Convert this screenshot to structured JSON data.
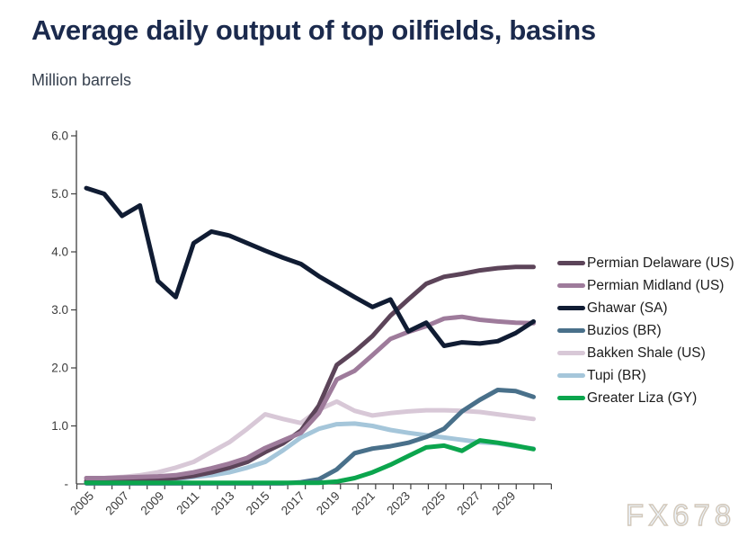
{
  "chart_data": {
    "type": "line",
    "title": "Average daily output of top oilfields, basins",
    "subtitle": "Million barrels",
    "watermark": "FX678",
    "xlabel": "",
    "ylabel": "Million barrels",
    "ylim": [
      0,
      6
    ],
    "grid": false,
    "legend_position": "right",
    "x": [
      2005,
      2006,
      2007,
      2008,
      2009,
      2010,
      2011,
      2012,
      2013,
      2014,
      2015,
      2016,
      2017,
      2018,
      2019,
      2020,
      2021,
      2022,
      2023,
      2024,
      2025,
      2026,
      2027,
      2028,
      2029,
      2030
    ],
    "x_tick_labels": [
      "2005",
      "2007",
      "2009",
      "2011",
      "2013",
      "2015",
      "2017",
      "2019",
      "2021",
      "2023",
      "2025",
      "2027",
      "2029"
    ],
    "y_ticks": [
      {
        "label": "-",
        "value": 0
      },
      {
        "label": "1.0",
        "value": 1
      },
      {
        "label": "2.0",
        "value": 2
      },
      {
        "label": "3.0",
        "value": 3
      },
      {
        "label": "4.0",
        "value": 4
      },
      {
        "label": "5.0",
        "value": 5
      },
      {
        "label": "6.0",
        "value": 6
      }
    ],
    "series": [
      {
        "name": "Permian Delaware (US)",
        "color": "#5c4459",
        "values": [
          0.05,
          0.05,
          0.06,
          0.07,
          0.08,
          0.1,
          0.14,
          0.2,
          0.28,
          0.38,
          0.55,
          0.7,
          0.92,
          1.35,
          2.05,
          2.28,
          2.55,
          2.9,
          3.18,
          3.45,
          3.57,
          3.62,
          3.68,
          3.72,
          3.74,
          3.74
        ]
      },
      {
        "name": "Permian Midland (US)",
        "color": "#9e7b9b",
        "values": [
          0.1,
          0.1,
          0.11,
          0.12,
          0.13,
          0.15,
          0.2,
          0.27,
          0.35,
          0.45,
          0.62,
          0.75,
          0.88,
          1.22,
          1.8,
          1.95,
          2.22,
          2.5,
          2.62,
          2.72,
          2.85,
          2.88,
          2.83,
          2.8,
          2.78,
          2.77
        ]
      },
      {
        "name": "Ghawar (SA)",
        "color": "#101c33",
        "values": [
          5.1,
          5.0,
          4.62,
          4.8,
          3.5,
          3.22,
          4.15,
          4.35,
          4.28,
          4.15,
          4.02,
          3.9,
          3.79,
          3.58,
          3.4,
          3.22,
          3.05,
          3.18,
          2.63,
          2.78,
          2.38,
          2.44,
          2.42,
          2.46,
          2.6,
          2.8
        ]
      },
      {
        "name": "Buzios (BR)",
        "color": "#49708a",
        "values": [
          0.01,
          0.01,
          0.01,
          0.01,
          0.01,
          0.01,
          0.01,
          0.01,
          0.01,
          0.01,
          0.01,
          0.01,
          0.03,
          0.08,
          0.25,
          0.53,
          0.61,
          0.65,
          0.71,
          0.81,
          0.95,
          1.25,
          1.45,
          1.62,
          1.6,
          1.5
        ]
      },
      {
        "name": "Bakken Shale (US)",
        "color": "#d8c8d7",
        "values": [
          0.1,
          0.1,
          0.12,
          0.15,
          0.2,
          0.28,
          0.38,
          0.55,
          0.72,
          0.95,
          1.2,
          1.12,
          1.05,
          1.28,
          1.42,
          1.26,
          1.18,
          1.22,
          1.25,
          1.27,
          1.27,
          1.26,
          1.24,
          1.2,
          1.16,
          1.12
        ]
      },
      {
        "name": "Tupi (BR)",
        "color": "#a5c6da",
        "values": [
          0.02,
          0.02,
          0.02,
          0.03,
          0.05,
          0.08,
          0.12,
          0.15,
          0.2,
          0.28,
          0.38,
          0.58,
          0.8,
          0.95,
          1.03,
          1.04,
          1.0,
          0.93,
          0.88,
          0.84,
          0.8,
          0.76,
          0.72,
          0.7,
          0.65,
          0.61
        ]
      },
      {
        "name": "Greater Liza (GY)",
        "color": "#0ba54d",
        "values": [
          0.02,
          0.02,
          0.02,
          0.02,
          0.02,
          0.02,
          0.02,
          0.02,
          0.02,
          0.02,
          0.02,
          0.02,
          0.02,
          0.02,
          0.04,
          0.1,
          0.2,
          0.33,
          0.48,
          0.63,
          0.66,
          0.57,
          0.75,
          0.71,
          0.66,
          0.6
        ]
      }
    ],
    "draw_order": [
      4,
      5,
      0,
      1,
      2,
      3,
      6
    ]
  }
}
